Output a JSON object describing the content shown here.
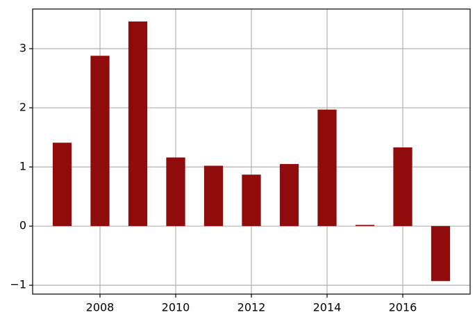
{
  "chart_data": {
    "type": "bar",
    "x": [
      2007,
      2008,
      2009,
      2010,
      2011,
      2012,
      2013,
      2014,
      2015,
      2016,
      2017
    ],
    "values": [
      1.41,
      2.88,
      3.46,
      1.16,
      1.02,
      0.87,
      1.05,
      1.97,
      0.02,
      1.33,
      -0.93
    ],
    "color": "#900c0c",
    "xlim": [
      2006.22,
      2017.78
    ],
    "xticks": [
      2008,
      2010,
      2012,
      2014,
      2016
    ],
    "ylim": [
      -1.15,
      3.67
    ],
    "yticks": [
      {
        "value": -1,
        "label": "−1"
      },
      0,
      1,
      2,
      3
    ],
    "grid": true
  }
}
